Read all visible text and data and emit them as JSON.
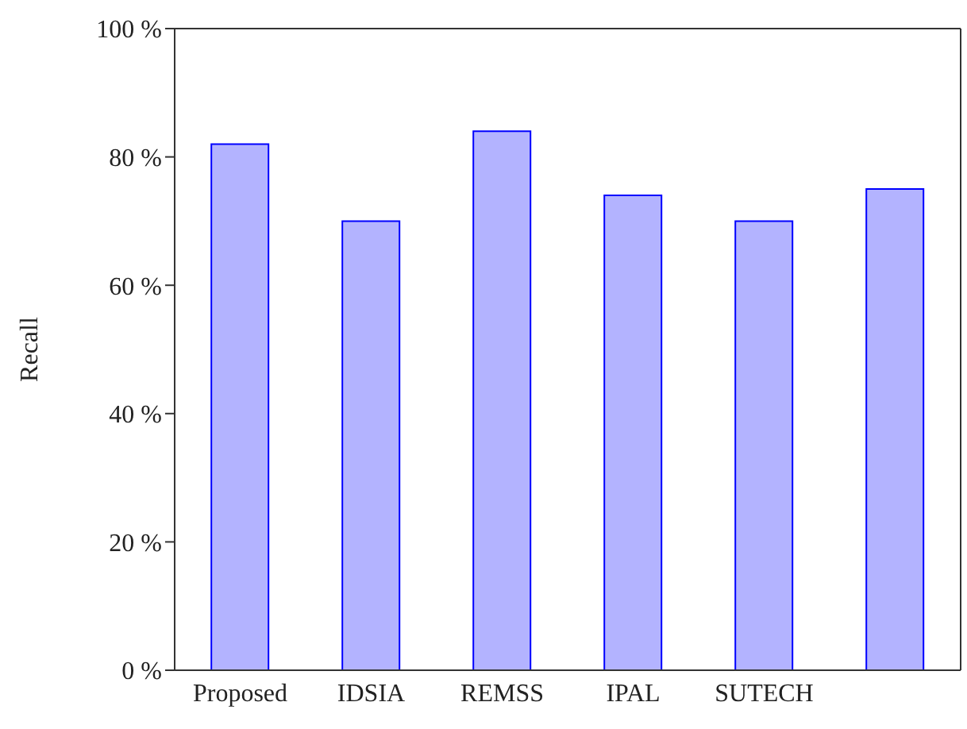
{
  "chart_data": {
    "type": "bar",
    "ylabel": "Recall",
    "categories": [
      "Proposed",
      "IDSIA",
      "REMSS",
      "IPAL",
      "SUTECH",
      null
    ],
    "values": [
      82,
      70,
      84,
      74,
      70,
      75
    ],
    "color": "#b3b3ff",
    "ylim": [
      0,
      100
    ],
    "yticks": [
      {
        "value": 0,
        "label": "0 %"
      },
      {
        "value": 20,
        "label": "20 %"
      },
      {
        "value": 40,
        "label": "40 %"
      },
      {
        "value": 60,
        "label": "60 %"
      },
      {
        "value": 80,
        "label": "80 %"
      },
      {
        "value": 100,
        "label": "100 %"
      }
    ],
    "grid": false,
    "legend": false
  }
}
